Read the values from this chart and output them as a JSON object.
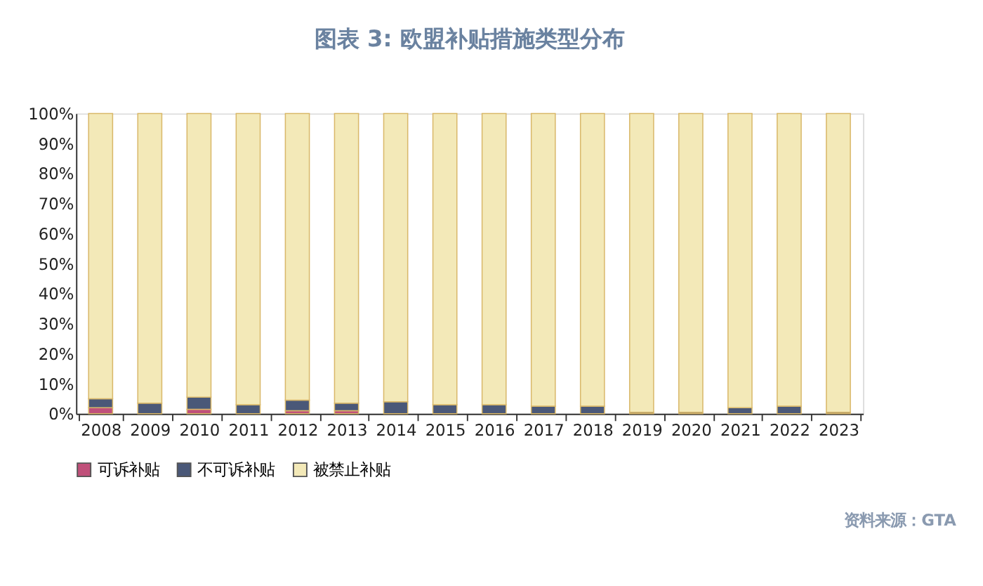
{
  "chart_data": {
    "type": "bar",
    "stacked": true,
    "title": "图表 3:   欧盟补贴措施类型分布",
    "categories": [
      "2008",
      "2009",
      "2010",
      "2011",
      "2012",
      "2013",
      "2014",
      "2015",
      "2016",
      "2017",
      "2018",
      "2019",
      "2020",
      "2021",
      "2022",
      "2023"
    ],
    "series": [
      {
        "name": "可诉补贴",
        "color": "#c0507a",
        "values": [
          2,
          null,
          1.5,
          null,
          1,
          1,
          null,
          null,
          null,
          null,
          null,
          null,
          null,
          null,
          null,
          null
        ]
      },
      {
        "name": "不可诉补贴",
        "color": "#4a5878",
        "values": [
          3,
          3.5,
          4,
          3,
          3.5,
          2.5,
          4,
          3,
          3,
          2.5,
          2.5,
          0.5,
          0.5,
          2,
          2.5,
          0.5
        ]
      },
      {
        "name": "被禁止补贴",
        "color": "#f3e9b8",
        "values": [
          95,
          96.5,
          94.5,
          97,
          95.5,
          96.5,
          96,
          97,
          97,
          97.5,
          97.5,
          99.5,
          99.5,
          98,
          97.5,
          99.5
        ]
      }
    ],
    "ylim": [
      0,
      100
    ],
    "yticks": [
      {
        "value": 0,
        "label": "0%"
      },
      {
        "value": 10,
        "label": "10%"
      },
      {
        "value": 20,
        "label": "20%"
      },
      {
        "value": 30,
        "label": "30%"
      },
      {
        "value": 40,
        "label": "40%"
      },
      {
        "value": 50,
        "label": "50%"
      },
      {
        "value": 60,
        "label": "60%"
      },
      {
        "value": 70,
        "label": "70%"
      },
      {
        "value": 80,
        "label": "80%"
      },
      {
        "value": 90,
        "label": "90%"
      },
      {
        "value": 100,
        "label": "100%"
      }
    ],
    "grid": false,
    "legend": "bottom",
    "annotations": [
      "资料来源：GTA"
    ]
  }
}
